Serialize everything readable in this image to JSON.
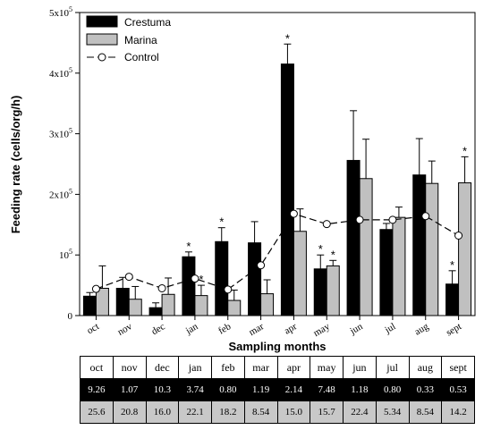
{
  "chart_data": {
    "type": "bar",
    "ylabel": "Feeding rate (cells/org/h)",
    "xlabel": "Sampling months",
    "ylim": [
      0,
      500000
    ],
    "y_tick_values": [
      0,
      100000,
      200000,
      300000,
      400000,
      500000
    ],
    "y_tick_bases": [
      "0",
      "10",
      "2x10",
      "3x10",
      "4x10",
      "5x10"
    ],
    "y_tick_exps": [
      "",
      "5",
      "5",
      "5",
      "5",
      "5"
    ],
    "categories": [
      "oct",
      "nov",
      "dec",
      "jan",
      "feb",
      "mar",
      "apr",
      "may",
      "jun",
      "jul",
      "aug",
      "sept"
    ],
    "legend_position": "top-left",
    "series": [
      {
        "name": "Crestuma",
        "color": "#000000",
        "values": [
          32000,
          45000,
          13000,
          97000,
          122000,
          120000,
          415000,
          77000,
          256000,
          142000,
          232000,
          52000
        ],
        "errors": [
          6000,
          18000,
          8000,
          8000,
          23000,
          35000,
          33000,
          23000,
          82000,
          10000,
          60000,
          22000
        ],
        "markers": [
          false,
          false,
          false,
          true,
          true,
          false,
          true,
          true,
          false,
          false,
          false,
          true
        ]
      },
      {
        "name": "Marina",
        "color": "#c0c0c0",
        "values": [
          45000,
          27000,
          35000,
          33000,
          25000,
          36000,
          139000,
          82000,
          226000,
          162000,
          218000,
          219000
        ],
        "errors": [
          37000,
          21000,
          27000,
          17000,
          17000,
          23000,
          37000,
          9000,
          65000,
          17000,
          37000,
          43000
        ],
        "markers": [
          false,
          false,
          false,
          true,
          false,
          false,
          false,
          true,
          false,
          false,
          false,
          true
        ]
      },
      {
        "name": "Control",
        "color": "#000000",
        "values": [
          44000,
          64000,
          45000,
          61000,
          43000,
          83000,
          168000,
          151000,
          158000,
          158000,
          164000,
          132000
        ]
      }
    ],
    "marker_text": "*"
  },
  "table": {
    "months": [
      "oct",
      "nov",
      "dec",
      "jan",
      "feb",
      "mar",
      "apr",
      "may",
      "jun",
      "jul",
      "aug",
      "sept"
    ],
    "crestuma": [
      "9.26",
      "1.07",
      "10.3",
      "3.74",
      "0.80",
      "1.19",
      "2.14",
      "7.48",
      "1.18",
      "0.80",
      "0.33",
      "0.53"
    ],
    "marina": [
      "25.6",
      "20.8",
      "16.0",
      "22.1",
      "18.2",
      "8.54",
      "15.0",
      "15.7",
      "22.4",
      "5.34",
      "8.54",
      "14.2"
    ]
  }
}
